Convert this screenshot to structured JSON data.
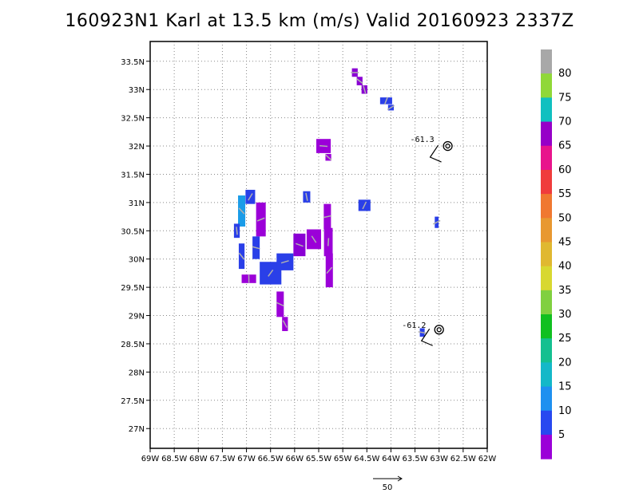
{
  "title": "160923N1 Karl at 13.5 km (m/s) Valid 20160923 2337Z",
  "chart_data": {
    "type": "heatmap",
    "title": "160923N1 Karl at 13.5 km (m/s) Valid 20160923 2337Z",
    "xlim": [
      -69,
      -62
    ],
    "ylim": [
      26.65,
      33.85
    ],
    "x_ticks": [
      -69,
      -68.5,
      -68,
      -67.5,
      -67,
      -66.5,
      -66,
      -65.5,
      -65,
      -64.5,
      -64,
      -63.5,
      -63,
      -62.5,
      -62
    ],
    "x_tick_labels": [
      "69W",
      "68.5W",
      "68W",
      "67.5W",
      "67W",
      "66.5W",
      "66W",
      "65.5W",
      "65W",
      "64.5W",
      "64W",
      "63.5W",
      "63W",
      "62.5W",
      "62W"
    ],
    "y_ticks": [
      27,
      27.5,
      28,
      28.5,
      29,
      29.5,
      30,
      30.5,
      31,
      31.5,
      32,
      32.5,
      33,
      33.5
    ],
    "y_tick_labels": [
      "27N",
      "27.5N",
      "28N",
      "28.5N",
      "29N",
      "29.5N",
      "30N",
      "30.5N",
      "31N",
      "31.5N",
      "32N",
      "32.5N",
      "33N",
      "33.5N"
    ],
    "grid": true,
    "colorbar": {
      "labels": [
        "5",
        "10",
        "15",
        "20",
        "25",
        "30",
        "35",
        "40",
        "45",
        "50",
        "55",
        "60",
        "65",
        "70",
        "75",
        "80"
      ],
      "colors": [
        "#9b00d8",
        "#7d00d0",
        "#2a3fe8",
        "#1e6ff5",
        "#1aa0ec",
        "#14b8b8",
        "#13c890",
        "#10c840",
        "#80d030",
        "#d8d830",
        "#e8b030",
        "#f08030",
        "#f04040",
        "#f01470",
        "#a000c8",
        "#10c0c0",
        "#80d838",
        "#a0a0a0"
      ]
    },
    "cells": [
      {
        "lon": -64.75,
        "lat": 33.3,
        "w": 0.12,
        "h": 0.15,
        "v": 9
      },
      {
        "lon": -64.65,
        "lat": 33.15,
        "w": 0.12,
        "h": 0.15,
        "v": 9
      },
      {
        "lon": -64.55,
        "lat": 33.0,
        "w": 0.12,
        "h": 0.15,
        "v": 8
      },
      {
        "lon": -64.1,
        "lat": 32.8,
        "w": 0.25,
        "h": 0.12,
        "v": 10
      },
      {
        "lon": -64.0,
        "lat": 32.68,
        "w": 0.12,
        "h": 0.1,
        "v": 10
      },
      {
        "lon": -65.4,
        "lat": 32.0,
        "w": 0.3,
        "h": 0.25,
        "v": 3
      },
      {
        "lon": -65.3,
        "lat": 31.8,
        "w": 0.12,
        "h": 0.12,
        "v": 3
      },
      {
        "lon": -65.75,
        "lat": 31.1,
        "w": 0.15,
        "h": 0.2,
        "v": 10
      },
      {
        "lon": -64.55,
        "lat": 30.95,
        "w": 0.25,
        "h": 0.2,
        "v": 10
      },
      {
        "lon": -63.05,
        "lat": 30.65,
        "w": 0.08,
        "h": 0.2,
        "v": 10
      },
      {
        "lon": -63.35,
        "lat": 28.7,
        "w": 0.1,
        "h": 0.15,
        "v": 10
      },
      {
        "lon": -67.1,
        "lat": 30.85,
        "w": 0.15,
        "h": 0.55,
        "v": 17
      },
      {
        "lon": -67.2,
        "lat": 30.5,
        "w": 0.12,
        "h": 0.25,
        "v": 13
      },
      {
        "lon": -66.92,
        "lat": 31.1,
        "w": 0.2,
        "h": 0.25,
        "v": 10
      },
      {
        "lon": -66.7,
        "lat": 30.7,
        "w": 0.2,
        "h": 0.6,
        "v": 4
      },
      {
        "lon": -66.8,
        "lat": 30.2,
        "w": 0.15,
        "h": 0.4,
        "v": 10
      },
      {
        "lon": -67.1,
        "lat": 30.05,
        "w": 0.12,
        "h": 0.45,
        "v": 10
      },
      {
        "lon": -66.95,
        "lat": 29.65,
        "w": 0.3,
        "h": 0.15,
        "v": 3
      },
      {
        "lon": -66.5,
        "lat": 29.75,
        "w": 0.45,
        "h": 0.4,
        "v": 10
      },
      {
        "lon": -66.2,
        "lat": 29.95,
        "w": 0.35,
        "h": 0.3,
        "v": 10
      },
      {
        "lon": -65.9,
        "lat": 30.25,
        "w": 0.25,
        "h": 0.4,
        "v": 6
      },
      {
        "lon": -65.6,
        "lat": 30.35,
        "w": 0.3,
        "h": 0.35,
        "v": 4
      },
      {
        "lon": -65.3,
        "lat": 30.3,
        "w": 0.18,
        "h": 0.5,
        "v": 3
      },
      {
        "lon": -65.28,
        "lat": 29.8,
        "w": 0.15,
        "h": 0.6,
        "v": 3
      },
      {
        "lon": -65.32,
        "lat": 30.75,
        "w": 0.15,
        "h": 0.45,
        "v": 3
      },
      {
        "lon": -66.3,
        "lat": 29.2,
        "w": 0.15,
        "h": 0.45,
        "v": 3
      },
      {
        "lon": -66.2,
        "lat": 28.85,
        "w": 0.12,
        "h": 0.25,
        "v": 3
      }
    ],
    "annotations": [
      {
        "text": "-61.3",
        "lon": -63.35,
        "lat": 32.07
      },
      {
        "text": "-61.2",
        "lon": -63.52,
        "lat": 28.78
      }
    ],
    "storm_symbols": [
      {
        "lon": -62.82,
        "lat": 32.0
      },
      {
        "lon": -63.0,
        "lat": 28.75
      }
    ],
    "reference_vector": {
      "label": "50"
    }
  }
}
